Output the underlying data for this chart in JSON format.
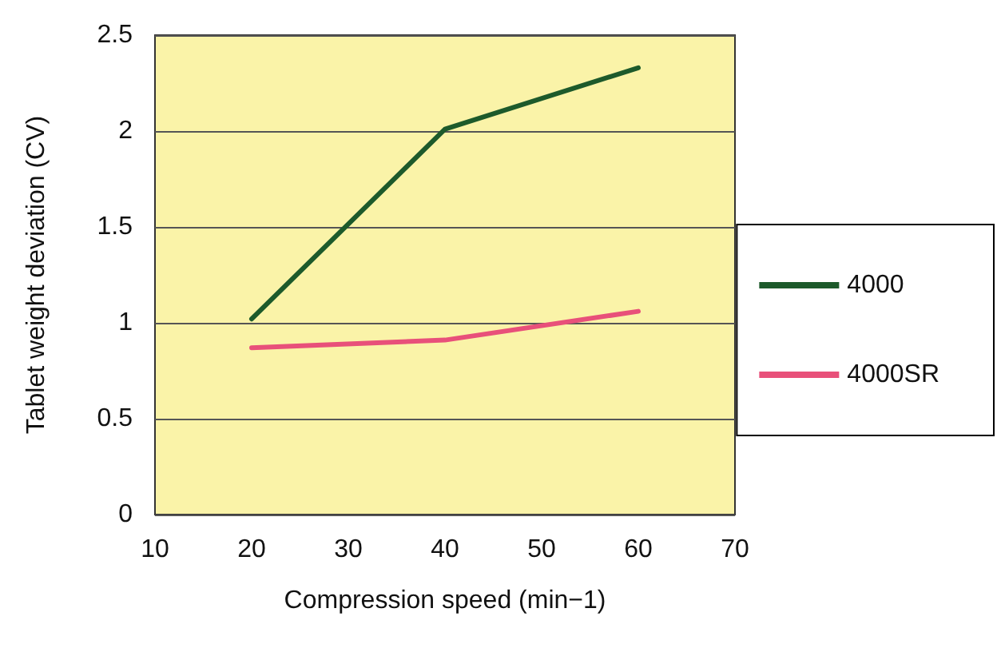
{
  "chart_data": {
    "type": "line",
    "xlabel": "Compression speed (min−1)",
    "ylabel": "Tablet weight deviation (CV)",
    "x": [
      20,
      40,
      60
    ],
    "series": [
      {
        "name": "4000",
        "color": "#1d5a2b",
        "values": [
          1.02,
          2.01,
          2.33
        ]
      },
      {
        "name": "4000SR",
        "color": "#e8507a",
        "values": [
          0.87,
          0.91,
          1.06
        ]
      }
    ],
    "xlim": [
      10,
      70
    ],
    "xticks": [
      10,
      20,
      30,
      40,
      50,
      60,
      70
    ],
    "ylim": [
      0,
      2.5
    ],
    "yticks": [
      0,
      0.5,
      1,
      1.5,
      2,
      2.5
    ],
    "grid": "y",
    "legend": "right",
    "marker": "none",
    "line_style": "solid"
  }
}
